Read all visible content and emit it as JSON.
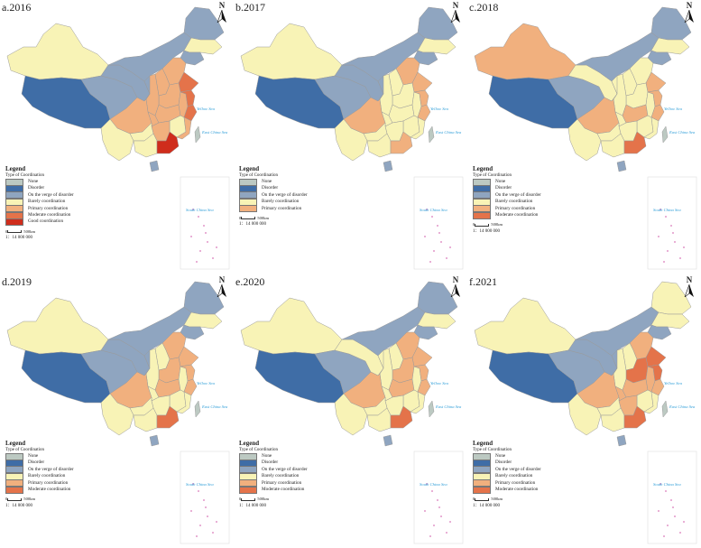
{
  "categories": {
    "none": {
      "label": "None",
      "color": "#bcc9c2"
    },
    "disorder": {
      "label": "Disorder",
      "color": "#3f6da6"
    },
    "verge": {
      "label": "On the verge of disorder",
      "color": "#8fa5c0"
    },
    "barely": {
      "label": "Barely coordination",
      "color": "#f8f3b6"
    },
    "primary": {
      "label": "Primary coordination",
      "color": "#f1b07e"
    },
    "moderate": {
      "label": "Moderate coordination",
      "color": "#e4734a"
    },
    "good": {
      "label": "Good coordination",
      "color": "#cf2d1c"
    }
  },
  "legend": {
    "title": "Legend",
    "subtitle": "Type of Coordination",
    "scale_text": "500km",
    "scale_zero": "0",
    "ratio": "1：14 000 000"
  },
  "north_label": "N",
  "sea_labels": [
    "Yellow Sea",
    "East China Sea",
    "South China Sea"
  ],
  "regions": [
    "Xinjiang",
    "Tibet",
    "Qinghai",
    "Gansu",
    "Inner Mongolia",
    "Heilongjiang",
    "Jilin",
    "Liaoning",
    "Beijing-Tianjin-Hebei",
    "Shanxi",
    "Shandong",
    "Henan",
    "Shaanxi",
    "Ningxia",
    "Sichuan",
    "Chongqing",
    "Hubei",
    "Anhui",
    "Jiangsu",
    "Zhejiang",
    "Jiangxi",
    "Hunan",
    "Guizhou",
    "Yunnan",
    "Guangxi",
    "Guangdong",
    "Fujian",
    "Hainan",
    "Taiwan"
  ],
  "panels": [
    {
      "title": "a.2016",
      "legend_items": [
        "none",
        "disorder",
        "verge",
        "barely",
        "primary",
        "moderate",
        "good"
      ],
      "values": {
        "Xinjiang": "barely",
        "Tibet": "disorder",
        "Qinghai": "verge",
        "Gansu": "verge",
        "Inner Mongolia": "verge",
        "Heilongjiang": "verge",
        "Jilin": "barely",
        "Liaoning": "verge",
        "Beijing-Tianjin-Hebei": "primary",
        "Shanxi": "primary",
        "Shandong": "moderate",
        "Henan": "primary",
        "Shaanxi": "primary",
        "Ningxia": "verge",
        "Sichuan": "primary",
        "Chongqing": "primary",
        "Hubei": "primary",
        "Anhui": "primary",
        "Jiangsu": "moderate",
        "Zhejiang": "moderate",
        "Jiangxi": "barely",
        "Hunan": "primary",
        "Guizhou": "barely",
        "Yunnan": "barely",
        "Guangxi": "barely",
        "Guangdong": "good",
        "Fujian": "primary",
        "Hainan": "verge",
        "Taiwan": "none"
      }
    },
    {
      "title": "b.2017",
      "legend_items": [
        "none",
        "disorder",
        "verge",
        "barely",
        "primary"
      ],
      "values": {
        "Xinjiang": "barely",
        "Tibet": "disorder",
        "Qinghai": "verge",
        "Gansu": "verge",
        "Inner Mongolia": "verge",
        "Heilongjiang": "verge",
        "Jilin": "barely",
        "Liaoning": "verge",
        "Beijing-Tianjin-Hebei": "primary",
        "Shanxi": "barely",
        "Shandong": "primary",
        "Henan": "barely",
        "Shaanxi": "barely",
        "Ningxia": "verge",
        "Sichuan": "primary",
        "Chongqing": "barely",
        "Hubei": "barely",
        "Anhui": "barely",
        "Jiangsu": "primary",
        "Zhejiang": "primary",
        "Jiangxi": "barely",
        "Hunan": "barely",
        "Guizhou": "barely",
        "Yunnan": "barely",
        "Guangxi": "barely",
        "Guangdong": "primary",
        "Fujian": "barely",
        "Hainan": "verge",
        "Taiwan": "none"
      }
    },
    {
      "title": "c.2018",
      "legend_items": [
        "none",
        "disorder",
        "verge",
        "barely",
        "primary",
        "moderate"
      ],
      "values": {
        "Xinjiang": "primary",
        "Tibet": "disorder",
        "Qinghai": "verge",
        "Gansu": "barely",
        "Inner Mongolia": "verge",
        "Heilongjiang": "verge",
        "Jilin": "barely",
        "Liaoning": "verge",
        "Beijing-Tianjin-Hebei": "barely",
        "Shanxi": "barely",
        "Shandong": "primary",
        "Henan": "barely",
        "Shaanxi": "barely",
        "Ningxia": "barely",
        "Sichuan": "primary",
        "Chongqing": "barely",
        "Hubei": "primary",
        "Anhui": "barely",
        "Jiangsu": "primary",
        "Zhejiang": "primary",
        "Jiangxi": "barely",
        "Hunan": "barely",
        "Guizhou": "barely",
        "Yunnan": "barely",
        "Guangxi": "barely",
        "Guangdong": "moderate",
        "Fujian": "barely",
        "Hainan": "verge",
        "Taiwan": "none"
      }
    },
    {
      "title": "d.2019",
      "legend_items": [
        "none",
        "disorder",
        "verge",
        "barely",
        "primary",
        "moderate"
      ],
      "values": {
        "Xinjiang": "barely",
        "Tibet": "disorder",
        "Qinghai": "verge",
        "Gansu": "verge",
        "Inner Mongolia": "verge",
        "Heilongjiang": "verge",
        "Jilin": "barely",
        "Liaoning": "verge",
        "Beijing-Tianjin-Hebei": "primary",
        "Shanxi": "barely",
        "Shandong": "primary",
        "Henan": "primary",
        "Shaanxi": "barely",
        "Ningxia": "verge",
        "Sichuan": "primary",
        "Chongqing": "barely",
        "Hubei": "primary",
        "Anhui": "barely",
        "Jiangsu": "primary",
        "Zhejiang": "primary",
        "Jiangxi": "barely",
        "Hunan": "barely",
        "Guizhou": "barely",
        "Yunnan": "barely",
        "Guangxi": "barely",
        "Guangdong": "moderate",
        "Fujian": "barely",
        "Hainan": "verge",
        "Taiwan": "none"
      }
    },
    {
      "title": "e.2020",
      "legend_items": [
        "none",
        "disorder",
        "verge",
        "barely",
        "primary",
        "moderate"
      ],
      "values": {
        "Xinjiang": "barely",
        "Tibet": "disorder",
        "Qinghai": "verge",
        "Gansu": "barely",
        "Inner Mongolia": "verge",
        "Heilongjiang": "verge",
        "Jilin": "barely",
        "Liaoning": "verge",
        "Beijing-Tianjin-Hebei": "primary",
        "Shanxi": "barely",
        "Shandong": "primary",
        "Henan": "primary",
        "Shaanxi": "barely",
        "Ningxia": "barely",
        "Sichuan": "primary",
        "Chongqing": "barely",
        "Hubei": "primary",
        "Anhui": "barely",
        "Jiangsu": "primary",
        "Zhejiang": "primary",
        "Jiangxi": "barely",
        "Hunan": "barely",
        "Guizhou": "barely",
        "Yunnan": "barely",
        "Guangxi": "barely",
        "Guangdong": "moderate",
        "Fujian": "barely",
        "Hainan": "verge",
        "Taiwan": "none"
      }
    },
    {
      "title": "f.2021",
      "legend_items": [
        "none",
        "disorder",
        "verge",
        "barely",
        "primary",
        "moderate"
      ],
      "values": {
        "Xinjiang": "barely",
        "Tibet": "disorder",
        "Qinghai": "verge",
        "Gansu": "verge",
        "Inner Mongolia": "verge",
        "Heilongjiang": "barely",
        "Jilin": "barely",
        "Liaoning": "verge",
        "Beijing-Tianjin-Hebei": "primary",
        "Shanxi": "barely",
        "Shandong": "moderate",
        "Henan": "moderate",
        "Shaanxi": "barely",
        "Ningxia": "verge",
        "Sichuan": "primary",
        "Chongqing": "primary",
        "Hubei": "primary",
        "Anhui": "primary",
        "Jiangsu": "moderate",
        "Zhejiang": "primary",
        "Jiangxi": "barely",
        "Hunan": "primary",
        "Guizhou": "barely",
        "Yunnan": "barely",
        "Guangxi": "barely",
        "Guangdong": "moderate",
        "Fujian": "barely",
        "Hainan": "verge",
        "Taiwan": "none"
      }
    }
  ]
}
